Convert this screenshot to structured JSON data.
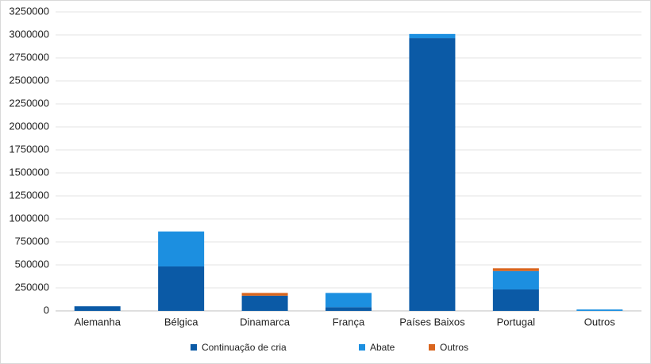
{
  "chart_data": {
    "type": "stacked-bar",
    "categories": [
      "Alemanha",
      "Bélgica",
      "Dinamarca",
      "França",
      "Países Baixos",
      "Portugal",
      "Outros"
    ],
    "series": [
      {
        "name": "Continuação de cria",
        "color": "#0b5aa6",
        "values": [
          50000,
          483000,
          165000,
          40000,
          2965000,
          233000,
          0
        ]
      },
      {
        "name": "Abate",
        "color": "#1c8fe0",
        "values": [
          0,
          380000,
          0,
          155000,
          45000,
          200000,
          15000
        ]
      },
      {
        "name": "Outros",
        "color": "#d9651e",
        "values": [
          0,
          0,
          30000,
          0,
          0,
          30000,
          0
        ]
      }
    ],
    "ylim": [
      0,
      3250000
    ],
    "yticks": [
      0,
      250000,
      500000,
      750000,
      1000000,
      1250000,
      1500000,
      1750000,
      2000000,
      2250000,
      2500000,
      2750000,
      3000000,
      3250000
    ],
    "grid": true
  }
}
